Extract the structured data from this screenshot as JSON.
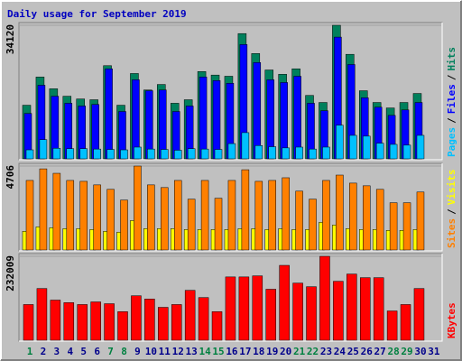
{
  "legend_separator": "/",
  "chart_data": [
    {
      "type": "bar",
      "title": "Daily usage for September 2019",
      "ylim": [
        0,
        34120
      ],
      "yticks": [
        34120
      ],
      "series": [
        {
          "name": "Hits",
          "color": "#00805c",
          "values": [
            13700,
            20900,
            17900,
            16000,
            15300,
            15100,
            23800,
            13700,
            21800,
            17600,
            19000,
            14200,
            15100,
            22300,
            21400,
            21100,
            32000,
            26900,
            22700,
            21600,
            23000,
            16200,
            14400,
            34120,
            26700,
            17400,
            14400,
            13000,
            14400,
            16700,
            null
          ]
        },
        {
          "name": "Files",
          "color": "#0000ff",
          "values": [
            11600,
            18800,
            16000,
            14200,
            13500,
            13900,
            23000,
            12100,
            20200,
            17400,
            17600,
            12100,
            13500,
            20900,
            20000,
            19300,
            29200,
            24600,
            20200,
            19500,
            21100,
            14200,
            12300,
            31100,
            24100,
            15600,
            13200,
            11100,
            12500,
            14400,
            null
          ]
        },
        {
          "name": "Pages",
          "color": "#00c0ff",
          "values": [
            2300,
            4900,
            2700,
            2600,
            2600,
            2500,
            2400,
            2300,
            3000,
            2500,
            2400,
            2200,
            2600,
            2500,
            2400,
            3900,
            6700,
            3400,
            3100,
            2800,
            3000,
            2500,
            3000,
            8600,
            6000,
            5800,
            4000,
            3700,
            3500,
            6000,
            null
          ]
        }
      ]
    },
    {
      "type": "bar",
      "ylim": [
        0,
        4706
      ],
      "yticks": [
        4706
      ],
      "series": [
        {
          "name": "Visits",
          "color": "#ffff00",
          "values": [
            1050,
            1300,
            1250,
            1200,
            1200,
            1150,
            1050,
            1000,
            1650,
            1200,
            1200,
            1200,
            1150,
            1150,
            1150,
            1150,
            1200,
            1200,
            1150,
            1200,
            1150,
            1150,
            1550,
            1400,
            1200,
            1150,
            1150,
            1100,
            1100,
            1150,
            null
          ]
        },
        {
          "name": "Sites",
          "color": "#ff8000",
          "values": [
            3900,
            4550,
            4300,
            3900,
            3850,
            3650,
            3400,
            2800,
            4706,
            3650,
            3500,
            3900,
            2850,
            3900,
            2900,
            3900,
            4500,
            3850,
            3900,
            4050,
            3300,
            2850,
            3900,
            4200,
            3750,
            3600,
            3400,
            2650,
            2650,
            3250,
            null
          ]
        }
      ]
    },
    {
      "type": "bar",
      "ylim": [
        0,
        232009
      ],
      "yticks": [
        232009
      ],
      "categories": [
        "1",
        "2",
        "3",
        "4",
        "5",
        "6",
        "7",
        "8",
        "9",
        "10",
        "11",
        "12",
        "13",
        "14",
        "15",
        "16",
        "17",
        "18",
        "19",
        "20",
        "21",
        "22",
        "23",
        "24",
        "25",
        "26",
        "27",
        "28",
        "29",
        "30",
        "31"
      ],
      "category_colors": [
        "#008040",
        "#00008b",
        "#00008b",
        "#00008b",
        "#00008b",
        "#00008b",
        "#008040",
        "#008040",
        "#00008b",
        "#00008b",
        "#00008b",
        "#00008b",
        "#00008b",
        "#008040",
        "#008040",
        "#00008b",
        "#00008b",
        "#00008b",
        "#00008b",
        "#00008b",
        "#008040",
        "#008040",
        "#00008b",
        "#00008b",
        "#00008b",
        "#00008b",
        "#00008b",
        "#008040",
        "#008040",
        "#00008b",
        "#00008b"
      ],
      "series": [
        {
          "name": "KBytes",
          "color": "#ff0000",
          "values": [
            98700,
            143000,
            111000,
            104000,
            98700,
            106000,
            101000,
            79000,
            123000,
            114000,
            91000,
            98700,
            138000,
            118000,
            79000,
            175000,
            175000,
            178000,
            141000,
            207000,
            158000,
            148000,
            232009,
            163000,
            183000,
            173000,
            173000,
            81000,
            98700,
            143000,
            null
          ]
        }
      ]
    }
  ]
}
